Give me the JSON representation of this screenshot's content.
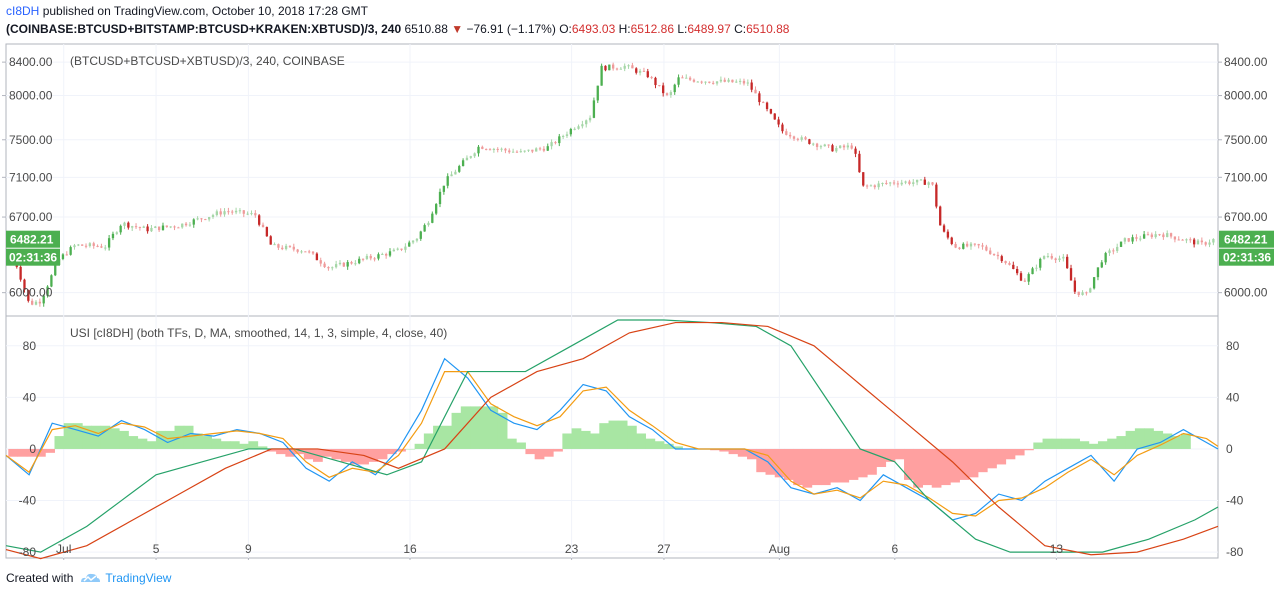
{
  "header": {
    "user": "cI8DH",
    "published_text": "published on TradingView.com, October 10, 2018 17:28 GMT",
    "symbol": "(COINBASE:BTCUSD+BITSTAMP:BTCUSD+KRAKEN:XBTUSD)/3, 240",
    "last": "6510.88",
    "change": "−76.91 (−1.17%)",
    "o_label": "O:",
    "o": "6493.03",
    "h_label": "H:",
    "h": "6512.86",
    "l_label": "L:",
    "l": "6489.97",
    "c_label": "C:",
    "c": "6510.88"
  },
  "footer": {
    "created_with": "Created with",
    "brand": "TradingView"
  },
  "colors": {
    "up": "#4caf50",
    "up_light": "#a5d6a7",
    "down": "#c62828",
    "down_light": "#ef9a9a",
    "blue": "#2196f3",
    "orange": "#f39c12",
    "teal": "#26a269",
    "red_line": "#d84315",
    "hist_pos": "#a8e6a3",
    "hist_neg": "#ffa0a0",
    "badge": "#4caf50",
    "axis_text": "#4a4a4a"
  },
  "chart_data": [
    {
      "type": "candlestick",
      "title": "(BTCUSD+BTCUSD+XBTUSD)/3, 240, COINBASE",
      "y_ticks": [
        "8400.00",
        "8000.00",
        "7500.00",
        "7100.00",
        "6700.00",
        "6000.00"
      ],
      "y_tick_values": [
        8400,
        8000,
        7500,
        7100,
        6700,
        6000
      ],
      "scale": "log",
      "ylim": [
        5850,
        8550
      ],
      "price_badge": "6482.21",
      "countdown_badge": "02:31:36",
      "x_ticks": [
        "Jul",
        "5",
        "9",
        "16",
        "23",
        "27",
        "Aug",
        "6",
        "13"
      ],
      "x_tick_day_index": [
        1,
        5,
        9,
        16,
        23,
        27,
        32,
        37,
        44
      ],
      "day_range": [
        -1.5,
        51
      ],
      "daily_close_path": {
        "day": [
          -1.2,
          -0.5,
          0,
          0.8,
          1.5,
          2.8,
          3.5,
          4.6,
          6,
          8,
          9.3,
          10,
          11.5,
          12.5,
          14,
          15.5,
          16.3,
          16.8,
          17.5,
          19,
          20.8,
          22,
          23.1,
          23.8,
          24.3,
          25.3,
          26.3,
          27.2,
          27.6,
          29,
          30.6,
          31.4,
          32.1,
          33,
          34.3,
          35.2,
          35.6,
          37,
          38.6,
          39,
          39.6,
          40.7,
          41.7,
          42.6,
          43.5,
          44.3,
          44.8,
          45.3,
          46,
          47,
          48.5,
          50.3,
          50.8
        ],
        "price": [
          6350,
          5900,
          5930,
          6300,
          6430,
          6420,
          6640,
          6580,
          6620,
          6760,
          6720,
          6420,
          6380,
          6220,
          6300,
          6380,
          6500,
          6670,
          7050,
          7430,
          7360,
          7420,
          7640,
          7760,
          8330,
          8350,
          8240,
          7970,
          8200,
          8170,
          8150,
          7850,
          7600,
          7500,
          7400,
          7430,
          7000,
          7050,
          7050,
          6580,
          6420,
          6420,
          6300,
          6100,
          6340,
          6300,
          6010,
          5980,
          6310,
          6480,
          6540,
          6440,
          6482
        ]
      }
    },
    {
      "type": "line",
      "title": "USI [cI8DH] (both TFs, D, MA, smoothed, 14, 1, 3, simple, 4, close, 40)",
      "y_ticks": [
        "80",
        "40",
        "0",
        "-40",
        "-80"
      ],
      "y_tick_values": [
        80,
        40,
        0,
        -40,
        -80
      ],
      "ylim": [
        -83,
        100
      ],
      "series": [
        {
          "key": "blue_fast",
          "day": [
            -1.5,
            -0.5,
            0.5,
            1.5,
            2.5,
            3.5,
            4.5,
            5.5,
            6.5,
            7.5,
            8.5,
            9.5,
            10.5,
            11.5,
            12.5,
            13.5,
            14.5,
            15.5,
            16.5,
            17.5,
            18.5,
            19.5,
            20.5,
            21.5,
            22.5,
            23.5,
            24.5,
            25.5,
            26.5,
            27.5,
            28.5,
            29.5,
            30.5,
            31.5,
            32.5,
            33.5,
            34.5,
            35.5,
            36.5,
            37.5,
            38.5,
            39.5,
            40.5,
            41.5,
            42.5,
            43.5,
            44.5,
            45.5,
            46.5,
            47.5,
            48.5,
            49.5,
            50.5,
            51
          ],
          "value": [
            -5,
            -20,
            20,
            15,
            10,
            22,
            15,
            5,
            12,
            10,
            15,
            12,
            5,
            -15,
            -25,
            -10,
            -20,
            0,
            30,
            70,
            55,
            30,
            20,
            15,
            30,
            50,
            45,
            25,
            15,
            0,
            0,
            0,
            0,
            -10,
            -30,
            -35,
            -30,
            -40,
            -20,
            -30,
            -40,
            -55,
            -50,
            -35,
            -40,
            -25,
            -15,
            -5,
            -25,
            0,
            5,
            15,
            5,
            0
          ]
        },
        {
          "key": "orange_slow",
          "day": [
            -1.5,
            -0.5,
            0.5,
            1.5,
            2.5,
            3.5,
            4.5,
            5.5,
            6.5,
            7.5,
            8.5,
            9.5,
            10.5,
            11.5,
            12.5,
            13.5,
            14.5,
            15.5,
            16.5,
            17.5,
            18.5,
            19.5,
            20.5,
            21.5,
            22.5,
            23.5,
            24.5,
            25.5,
            26.5,
            27.5,
            28.5,
            29.5,
            30.5,
            31.5,
            32.5,
            33.5,
            34.5,
            35.5,
            36.5,
            37.5,
            38.5,
            39.5,
            40.5,
            41.5,
            42.5,
            43.5,
            44.5,
            45.5,
            46.5,
            47.5,
            48.5,
            49.5,
            50.5,
            51
          ],
          "value": [
            -5,
            -18,
            15,
            18,
            12,
            20,
            17,
            8,
            10,
            12,
            14,
            12,
            8,
            -10,
            -22,
            -15,
            -18,
            -5,
            20,
            60,
            60,
            35,
            25,
            18,
            25,
            45,
            48,
            30,
            18,
            5,
            0,
            0,
            0,
            -5,
            -25,
            -35,
            -32,
            -38,
            -25,
            -28,
            -38,
            -50,
            -52,
            -40,
            -38,
            -30,
            -18,
            -8,
            -20,
            -5,
            3,
            12,
            8,
            2
          ]
        },
        {
          "key": "green_step",
          "day": [
            -1.5,
            0,
            2,
            3.5,
            5,
            7,
            9,
            11,
            13,
            15,
            16.5,
            18.5,
            21,
            23,
            25,
            27,
            29,
            31,
            32.5,
            34,
            35.5,
            37,
            38.5,
            40.5,
            42,
            44,
            46,
            48,
            50,
            51
          ],
          "value": [
            -75,
            -80,
            -60,
            -40,
            -20,
            -10,
            0,
            0,
            -10,
            -20,
            -10,
            60,
            60,
            80,
            100,
            100,
            98,
            95,
            80,
            40,
            0,
            -10,
            -40,
            -70,
            -80,
            -80,
            -80,
            -70,
            -55,
            -45
          ]
        },
        {
          "key": "red_step",
          "day": [
            -1.5,
            0,
            2,
            4,
            6,
            8,
            10,
            12,
            14,
            15.5,
            17.5,
            19.5,
            21.5,
            23.5,
            25.5,
            27.5,
            29.5,
            31.5,
            33.5,
            35.5,
            37.5,
            39.5,
            41.5,
            43.5,
            45.5,
            47.5,
            49.5,
            51
          ],
          "value": [
            -78,
            -85,
            -75,
            -55,
            -35,
            -15,
            0,
            0,
            -5,
            -15,
            0,
            40,
            60,
            70,
            90,
            98,
            98,
            95,
            80,
            50,
            20,
            -10,
            -45,
            -75,
            -82,
            -80,
            -70,
            -60
          ]
        }
      ],
      "histogram": {
        "day": [
          -1.2,
          -0.8,
          -0.4,
          0,
          0.4,
          0.8,
          1.2,
          1.6,
          2,
          2.4,
          2.8,
          3.2,
          3.6,
          4,
          4.4,
          4.8,
          5.2,
          5.6,
          6,
          6.4,
          6.8,
          7.2,
          7.6,
          8,
          8.4,
          8.8,
          9.2,
          9.6,
          10,
          10.4,
          10.8,
          11.2,
          11.6,
          12,
          12.4,
          12.8,
          13.2,
          13.6,
          14,
          14.4,
          14.8,
          15.2,
          15.6,
          16,
          16.4,
          16.8,
          17.2,
          17.6,
          18,
          18.4,
          18.8,
          19.2,
          19.6,
          20,
          20.4,
          20.8,
          21.2,
          21.6,
          22,
          22.4,
          22.8,
          23.2,
          23.6,
          24,
          24.4,
          24.8,
          25.2,
          25.6,
          26,
          26.4,
          26.8,
          27.2,
          27.6,
          28,
          28.4,
          28.8,
          29.2,
          29.6,
          30,
          30.4,
          30.8,
          31.2,
          31.6,
          32,
          32.4,
          32.8,
          33.2,
          33.6,
          34,
          34.4,
          34.8,
          35.2,
          35.6,
          36,
          36.4,
          36.8,
          37.2,
          37.6,
          38,
          38.4,
          38.8,
          39.2,
          39.6,
          40,
          40.4,
          40.8,
          41.2,
          41.6,
          42,
          42.4,
          42.8,
          43.2,
          43.6,
          44,
          44.4,
          44.8,
          45.2,
          45.6,
          46,
          46.4,
          46.8,
          47.2,
          47.6,
          48,
          48.4,
          48.8,
          49.2,
          49.6,
          50,
          50.4,
          50.8
        ],
        "value": [
          -6,
          -6,
          -6,
          -6,
          -3,
          10,
          20,
          20,
          18,
          18,
          18,
          16,
          14,
          10,
          8,
          6,
          14,
          14,
          18,
          18,
          12,
          10,
          8,
          6,
          6,
          4,
          6,
          2,
          -2,
          -4,
          -6,
          -4,
          -8,
          -10,
          -6,
          -8,
          -10,
          -12,
          -12,
          -10,
          -8,
          -4,
          -2,
          0,
          4,
          12,
          18,
          18,
          28,
          33,
          33,
          33,
          33,
          28,
          8,
          5,
          -4,
          -8,
          -6,
          -2,
          12,
          16,
          14,
          12,
          20,
          22,
          22,
          18,
          12,
          8,
          6,
          4,
          2,
          0,
          0,
          0,
          -1,
          -2,
          -4,
          -6,
          -8,
          -18,
          -20,
          -22,
          -24,
          -28,
          -30,
          -28,
          -28,
          -26,
          -26,
          -24,
          -22,
          -20,
          -14,
          -10,
          -8,
          -24,
          -30,
          -28,
          -30,
          -28,
          -26,
          -24,
          -22,
          -18,
          -15,
          -12,
          -8,
          -5,
          -1,
          5,
          8,
          8,
          8,
          8,
          6,
          4,
          6,
          8,
          10,
          14,
          16,
          16,
          14,
          12,
          10,
          12
        ]
      }
    }
  ]
}
